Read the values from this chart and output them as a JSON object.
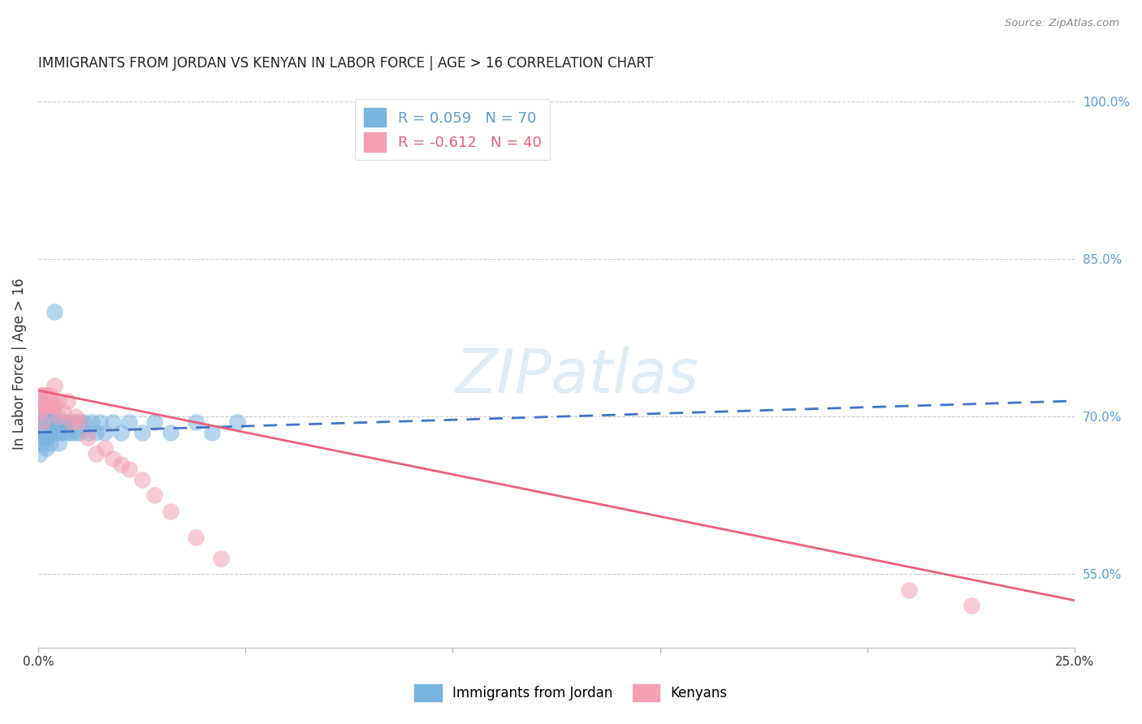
{
  "title": "IMMIGRANTS FROM JORDAN VS KENYAN IN LABOR FORCE | AGE > 16 CORRELATION CHART",
  "source": "Source: ZipAtlas.com",
  "ylabel": "In Labor Force | Age > 16",
  "legend_jordan": "R = 0.059   N = 70",
  "legend_kenyan": "R = -0.612   N = 40",
  "legend_label_jordan": "Immigrants from Jordan",
  "legend_label_kenyan": "Kenyans",
  "jordan_color": "#7ab4e0",
  "kenyan_color": "#f4a0b5",
  "jordan_line_color": "#4472c4",
  "kenyan_line_color": "#e8607a",
  "background_color": "#ffffff",
  "watermark": "ZIPatlas",
  "jordan_x": [
    0.0002,
    0.0003,
    0.0005,
    0.0005,
    0.0006,
    0.0007,
    0.0008,
    0.0008,
    0.0009,
    0.001,
    0.001,
    0.001,
    0.001,
    0.0012,
    0.0013,
    0.0014,
    0.0015,
    0.0015,
    0.0016,
    0.0017,
    0.0018,
    0.0019,
    0.002,
    0.002,
    0.002,
    0.002,
    0.0022,
    0.0023,
    0.0025,
    0.0027,
    0.003,
    0.003,
    0.003,
    0.003,
    0.0032,
    0.0034,
    0.0036,
    0.0038,
    0.004,
    0.004,
    0.0042,
    0.0045,
    0.005,
    0.005,
    0.005,
    0.006,
    0.006,
    0.007,
    0.007,
    0.008,
    0.008,
    0.009,
    0.009,
    0.01,
    0.01,
    0.011,
    0.012,
    0.013,
    0.014,
    0.015,
    0.016,
    0.018,
    0.02,
    0.022,
    0.025,
    0.028,
    0.032,
    0.038,
    0.042,
    0.048
  ],
  "jordan_y": [
    0.695,
    0.68,
    0.71,
    0.665,
    0.7,
    0.695,
    0.685,
    0.7,
    0.69,
    0.715,
    0.695,
    0.685,
    0.675,
    0.7,
    0.695,
    0.71,
    0.68,
    0.695,
    0.685,
    0.7,
    0.695,
    0.68,
    0.71,
    0.695,
    0.68,
    0.67,
    0.695,
    0.705,
    0.695,
    0.685,
    0.7,
    0.695,
    0.685,
    0.675,
    0.7,
    0.695,
    0.705,
    0.695,
    0.8,
    0.695,
    0.685,
    0.695,
    0.695,
    0.685,
    0.675,
    0.695,
    0.685,
    0.695,
    0.685,
    0.695,
    0.685,
    0.695,
    0.685,
    0.695,
    0.685,
    0.695,
    0.685,
    0.695,
    0.685,
    0.695,
    0.685,
    0.695,
    0.685,
    0.695,
    0.685,
    0.695,
    0.685,
    0.695,
    0.685,
    0.695
  ],
  "kenyan_x": [
    0.0003,
    0.0005,
    0.0006,
    0.0007,
    0.0008,
    0.001,
    0.001,
    0.0012,
    0.0014,
    0.0016,
    0.0018,
    0.002,
    0.002,
    0.0022,
    0.0025,
    0.003,
    0.003,
    0.0035,
    0.004,
    0.004,
    0.005,
    0.005,
    0.006,
    0.007,
    0.008,
    0.009,
    0.01,
    0.012,
    0.014,
    0.016,
    0.018,
    0.02,
    0.022,
    0.025,
    0.028,
    0.032,
    0.038,
    0.044,
    0.21,
    0.225
  ],
  "kenyan_y": [
    0.715,
    0.705,
    0.72,
    0.715,
    0.71,
    0.72,
    0.695,
    0.72,
    0.715,
    0.71,
    0.72,
    0.715,
    0.71,
    0.72,
    0.715,
    0.71,
    0.72,
    0.715,
    0.73,
    0.71,
    0.715,
    0.7,
    0.705,
    0.715,
    0.695,
    0.7,
    0.695,
    0.68,
    0.665,
    0.67,
    0.66,
    0.655,
    0.65,
    0.64,
    0.625,
    0.61,
    0.585,
    0.565,
    0.535,
    0.52
  ],
  "xlim": [
    0.0,
    0.25
  ],
  "ylim": [
    0.48,
    1.02
  ],
  "yticks": [
    0.55,
    0.7,
    0.85,
    1.0
  ],
  "xticks": [
    0.0,
    0.05,
    0.1,
    0.15,
    0.2,
    0.25
  ],
  "xtick_labels": [
    "0.0%",
    "",
    "",
    "",
    "",
    "25.0%"
  ],
  "ytick_labels_right": [
    "55.0%",
    "70.0%",
    "85.0%",
    "100.0%"
  ],
  "jordan_line_x": [
    0.0,
    0.25
  ],
  "jordan_line_y": [
    0.685,
    0.715
  ],
  "kenyan_line_x": [
    0.0,
    0.25
  ],
  "kenyan_line_y": [
    0.725,
    0.525
  ]
}
